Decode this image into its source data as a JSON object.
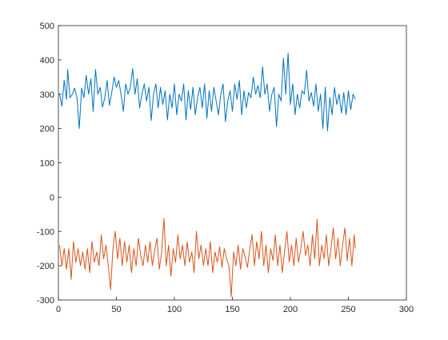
{
  "chart_data": {
    "type": "line",
    "title": "",
    "xlabel": "",
    "ylabel": "",
    "xlim": [
      0,
      300
    ],
    "ylim": [
      -300,
      500
    ],
    "xticks": [
      0,
      50,
      100,
      150,
      200,
      250,
      300
    ],
    "yticks": [
      -300,
      -200,
      -100,
      0,
      100,
      200,
      300,
      400,
      500
    ],
    "xtick_labels": [
      "0",
      "50",
      "100",
      "150",
      "200",
      "250",
      "300"
    ],
    "ytick_labels": [
      "-300",
      "-200",
      "-100",
      "0",
      "100",
      "200",
      "300",
      "400",
      "500"
    ],
    "grid": false,
    "legend": "none",
    "x": [
      1,
      256
    ],
    "series": [
      {
        "color": "#0072BD",
        "points": [
          [
            1,
            300
          ],
          [
            3,
            265
          ],
          [
            5,
            340
          ],
          [
            7,
            285
          ],
          [
            8,
            372
          ],
          [
            10,
            290
          ],
          [
            12,
            300
          ],
          [
            14,
            318
          ],
          [
            16,
            290
          ],
          [
            18,
            200
          ],
          [
            20,
            318
          ],
          [
            22,
            290
          ],
          [
            24,
            355
          ],
          [
            26,
            300
          ],
          [
            28,
            345
          ],
          [
            30,
            250
          ],
          [
            32,
            372
          ],
          [
            34,
            300
          ],
          [
            36,
            320
          ],
          [
            38,
            262
          ],
          [
            40,
            290
          ],
          [
            42,
            340
          ],
          [
            44,
            268
          ],
          [
            46,
            305
          ],
          [
            48,
            350
          ],
          [
            50,
            320
          ],
          [
            52,
            340
          ],
          [
            54,
            300
          ],
          [
            56,
            250
          ],
          [
            58,
            330
          ],
          [
            60,
            300
          ],
          [
            62,
            320
          ],
          [
            64,
            375
          ],
          [
            66,
            300
          ],
          [
            68,
            345
          ],
          [
            70,
            260
          ],
          [
            72,
            300
          ],
          [
            74,
            330
          ],
          [
            76,
            280
          ],
          [
            78,
            320
          ],
          [
            80,
            223
          ],
          [
            82,
            300
          ],
          [
            84,
            330
          ],
          [
            86,
            260
          ],
          [
            88,
            320
          ],
          [
            90,
            270
          ],
          [
            92,
            310
          ],
          [
            94,
            225
          ],
          [
            96,
            300
          ],
          [
            98,
            260
          ],
          [
            100,
            330
          ],
          [
            102,
            240
          ],
          [
            104,
            300
          ],
          [
            106,
            280
          ],
          [
            108,
            330
          ],
          [
            110,
            225
          ],
          [
            112,
            310
          ],
          [
            114,
            255
          ],
          [
            116,
            320
          ],
          [
            118,
            240
          ],
          [
            120,
            290
          ],
          [
            122,
            320
          ],
          [
            124,
            260
          ],
          [
            126,
            330
          ],
          [
            128,
            230
          ],
          [
            130,
            310
          ],
          [
            132,
            250
          ],
          [
            134,
            320
          ],
          [
            136,
            280
          ],
          [
            138,
            240
          ],
          [
            140,
            300
          ],
          [
            142,
            330
          ],
          [
            144,
            220
          ],
          [
            146,
            280
          ],
          [
            148,
            310
          ],
          [
            150,
            250
          ],
          [
            152,
            330
          ],
          [
            154,
            285
          ],
          [
            156,
            340
          ],
          [
            158,
            240
          ],
          [
            160,
            310
          ],
          [
            162,
            260
          ],
          [
            164,
            305
          ],
          [
            166,
            290
          ],
          [
            168,
            350
          ],
          [
            170,
            300
          ],
          [
            172,
            325
          ],
          [
            174,
            290
          ],
          [
            176,
            380
          ],
          [
            178,
            300
          ],
          [
            180,
            330
          ],
          [
            182,
            250
          ],
          [
            184,
            300
          ],
          [
            186,
            320
          ],
          [
            188,
            205
          ],
          [
            190,
            300
          ],
          [
            192,
            280
          ],
          [
            194,
            405
          ],
          [
            196,
            300
          ],
          [
            198,
            420
          ],
          [
            200,
            270
          ],
          [
            202,
            330
          ],
          [
            204,
            240
          ],
          [
            206,
            300
          ],
          [
            208,
            260
          ],
          [
            210,
            310
          ],
          [
            212,
            300
          ],
          [
            214,
            370
          ],
          [
            216,
            280
          ],
          [
            218,
            305
          ],
          [
            220,
            265
          ],
          [
            222,
            330
          ],
          [
            224,
            250
          ],
          [
            226,
            300
          ],
          [
            228,
            200
          ],
          [
            230,
            320
          ],
          [
            232,
            193
          ],
          [
            234,
            290
          ],
          [
            236,
            240
          ],
          [
            238,
            320
          ],
          [
            240,
            270
          ],
          [
            242,
            300
          ],
          [
            244,
            245
          ],
          [
            246,
            305
          ],
          [
            248,
            240
          ],
          [
            250,
            310
          ],
          [
            252,
            255
          ],
          [
            254,
            300
          ],
          [
            256,
            285
          ]
        ]
      },
      {
        "color": "#D95319",
        "points": [
          [
            1,
            -140
          ],
          [
            3,
            -200
          ],
          [
            5,
            -150
          ],
          [
            7,
            -210
          ],
          [
            9,
            -150
          ],
          [
            11,
            -240
          ],
          [
            13,
            -130
          ],
          [
            15,
            -190
          ],
          [
            17,
            -150
          ],
          [
            19,
            -200
          ],
          [
            21,
            -160
          ],
          [
            23,
            -210
          ],
          [
            25,
            -150
          ],
          [
            27,
            -220
          ],
          [
            29,
            -130
          ],
          [
            31,
            -190
          ],
          [
            33,
            -160
          ],
          [
            35,
            -200
          ],
          [
            37,
            -110
          ],
          [
            39,
            -180
          ],
          [
            41,
            -140
          ],
          [
            43,
            -200
          ],
          [
            45,
            -270
          ],
          [
            47,
            -150
          ],
          [
            49,
            -100
          ],
          [
            51,
            -180
          ],
          [
            53,
            -120
          ],
          [
            55,
            -200
          ],
          [
            57,
            -130
          ],
          [
            59,
            -190
          ],
          [
            61,
            -140
          ],
          [
            63,
            -220
          ],
          [
            65,
            -150
          ],
          [
            67,
            -200
          ],
          [
            69,
            -120
          ],
          [
            71,
            -170
          ],
          [
            73,
            -200
          ],
          [
            75,
            -140
          ],
          [
            77,
            -190
          ],
          [
            79,
            -130
          ],
          [
            81,
            -200
          ],
          [
            83,
            -155
          ],
          [
            85,
            -120
          ],
          [
            87,
            -210
          ],
          [
            89,
            -160
          ],
          [
            91,
            -62
          ],
          [
            93,
            -200
          ],
          [
            95,
            -140
          ],
          [
            97,
            -230
          ],
          [
            99,
            -150
          ],
          [
            101,
            -190
          ],
          [
            103,
            -110
          ],
          [
            105,
            -180
          ],
          [
            107,
            -140
          ],
          [
            109,
            -200
          ],
          [
            111,
            -130
          ],
          [
            113,
            -190
          ],
          [
            115,
            -160
          ],
          [
            117,
            -220
          ],
          [
            119,
            -100
          ],
          [
            121,
            -180
          ],
          [
            123,
            -140
          ],
          [
            125,
            -200
          ],
          [
            127,
            -150
          ],
          [
            129,
            -200
          ],
          [
            131,
            -130
          ],
          [
            133,
            -220
          ],
          [
            135,
            -160
          ],
          [
            137,
            -190
          ],
          [
            139,
            -145
          ],
          [
            141,
            -205
          ],
          [
            143,
            -150
          ],
          [
            145,
            -180
          ],
          [
            147,
            -200
          ],
          [
            149,
            -290
          ],
          [
            151,
            -160
          ],
          [
            153,
            -200
          ],
          [
            155,
            -140
          ],
          [
            157,
            -210
          ],
          [
            159,
            -150
          ],
          [
            161,
            -175
          ],
          [
            163,
            -205
          ],
          [
            165,
            -150
          ],
          [
            167,
            -110
          ],
          [
            169,
            -200
          ],
          [
            171,
            -130
          ],
          [
            173,
            -180
          ],
          [
            175,
            -100
          ],
          [
            177,
            -200
          ],
          [
            179,
            -140
          ],
          [
            181,
            -220
          ],
          [
            183,
            -150
          ],
          [
            185,
            -185
          ],
          [
            187,
            -110
          ],
          [
            189,
            -200
          ],
          [
            191,
            -140
          ],
          [
            193,
            -220
          ],
          [
            195,
            -160
          ],
          [
            197,
            -100
          ],
          [
            199,
            -190
          ],
          [
            201,
            -140
          ],
          [
            203,
            -200
          ],
          [
            205,
            -120
          ],
          [
            207,
            -190
          ],
          [
            209,
            -150
          ],
          [
            211,
            -100
          ],
          [
            213,
            -170
          ],
          [
            215,
            -140
          ],
          [
            217,
            -200
          ],
          [
            219,
            -110
          ],
          [
            221,
            -180
          ],
          [
            223,
            -65
          ],
          [
            225,
            -200
          ],
          [
            227,
            -140
          ],
          [
            229,
            -180
          ],
          [
            231,
            -110
          ],
          [
            233,
            -200
          ],
          [
            235,
            -150
          ],
          [
            237,
            -90
          ],
          [
            239,
            -180
          ],
          [
            241,
            -120
          ],
          [
            243,
            -200
          ],
          [
            245,
            -140
          ],
          [
            247,
            -90
          ],
          [
            249,
            -185
          ],
          [
            251,
            -120
          ],
          [
            253,
            -200
          ],
          [
            255,
            -110
          ],
          [
            256,
            -150
          ]
        ]
      }
    ]
  }
}
